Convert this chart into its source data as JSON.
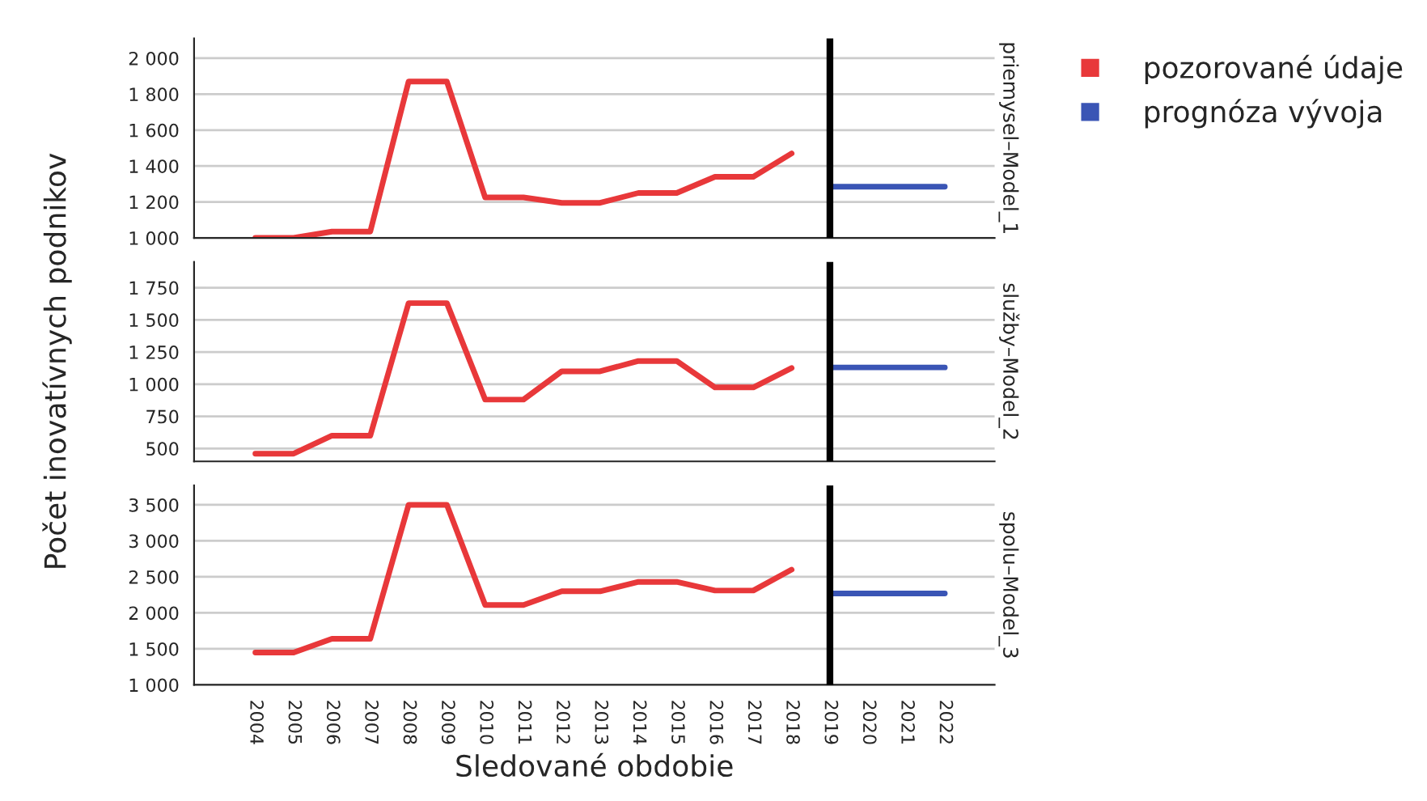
{
  "chart_data": [
    {
      "type": "line",
      "title": "priemysel–Model_1",
      "ylabel": "Počet inovatívnych podnikov",
      "xlim": [
        2002.4,
        2023.3
      ],
      "xticks": [
        2004,
        2005,
        2006,
        2007,
        2008,
        2009,
        2010,
        2011,
        2012,
        2013,
        2014,
        2015,
        2016,
        2017,
        2018,
        2019,
        2020,
        2021,
        2022
      ],
      "ylim": [
        1000,
        2110
      ],
      "yticks": [
        {
          "value": 1000,
          "label": "1 000"
        },
        {
          "value": 1200,
          "label": "1 200"
        },
        {
          "value": 1400,
          "label": "1 400"
        },
        {
          "value": 1600,
          "label": "1 600"
        },
        {
          "value": 1800,
          "label": "1 800"
        },
        {
          "value": 2000,
          "label": "2 000"
        }
      ],
      "grid": "y",
      "tick_labels": "y",
      "legend": "top right",
      "ref_lines": [
        {
          "axis": "x",
          "value": 2019,
          "color": "#000000"
        }
      ],
      "series": [
        {
          "name": "pozorované údaje",
          "color": "#e8383a",
          "x": [
            2004,
            2005,
            2006,
            2007,
            2008,
            2009,
            2010,
            2011,
            2012,
            2013,
            2014,
            2015,
            2016,
            2017,
            2018
          ],
          "values": [
            1000,
            1000,
            1035,
            1035,
            1870,
            1870,
            1225,
            1225,
            1195,
            1195,
            1250,
            1250,
            1340,
            1340,
            1470
          ]
        },
        {
          "name": "prognóza vývoja",
          "color": "#3a55b5",
          "x": [
            2019,
            2020,
            2021,
            2022
          ],
          "values": [
            1285,
            1285,
            1285,
            1285
          ]
        }
      ]
    },
    {
      "type": "line",
      "title": "služby–Model_2",
      "xlim": [
        2002.4,
        2023.3
      ],
      "xticks": [
        2004,
        2005,
        2006,
        2007,
        2008,
        2009,
        2010,
        2011,
        2012,
        2013,
        2014,
        2015,
        2016,
        2017,
        2018,
        2019,
        2020,
        2021,
        2022
      ],
      "ylim": [
        400,
        1950
      ],
      "yticks": [
        500,
        750,
        {
          "value": 1000,
          "label": "1 000"
        },
        {
          "value": 1250,
          "label": "1 250"
        },
        {
          "value": 1500,
          "label": "1 500"
        },
        {
          "value": 1750,
          "label": "1 750"
        }
      ],
      "grid": "y",
      "tick_labels": "y",
      "ref_lines": [
        {
          "axis": "x",
          "value": 2019,
          "color": "#000000"
        }
      ],
      "series": [
        {
          "color": "#e8383a",
          "x": [
            2004,
            2005,
            2006,
            2007,
            2008,
            2009,
            2010,
            2011,
            2012,
            2013,
            2014,
            2015,
            2016,
            2017,
            2018
          ],
          "values": [
            460,
            460,
            600,
            600,
            1630,
            1630,
            880,
            880,
            1100,
            1100,
            1180,
            1180,
            975,
            975,
            1125
          ]
        },
        {
          "color": "#3a55b5",
          "x": [
            2019,
            2020,
            2021,
            2022
          ],
          "values": [
            1130,
            1130,
            1130,
            1130
          ]
        }
      ]
    },
    {
      "type": "line",
      "title": "spolu–Model_3",
      "xlabel": "Sledované obdobie",
      "xlim": [
        2002.4,
        2023.3
      ],
      "xticks": [
        2004,
        2005,
        2006,
        2007,
        2008,
        2009,
        2010,
        2011,
        2012,
        2013,
        2014,
        2015,
        2016,
        2017,
        2018,
        2019,
        2020,
        2021,
        2022
      ],
      "ylim": [
        1000,
        3770
      ],
      "yticks": [
        {
          "value": 1000,
          "label": "1 000"
        },
        {
          "value": 1500,
          "label": "1 500"
        },
        {
          "value": 2000,
          "label": "2 000"
        },
        {
          "value": 2500,
          "label": "2 500"
        },
        {
          "value": 3000,
          "label": "3 000"
        },
        {
          "value": 3500,
          "label": "3 500"
        }
      ],
      "grid": "y",
      "ref_lines": [
        {
          "axis": "x",
          "value": 2019,
          "color": "#000000"
        }
      ],
      "series": [
        {
          "color": "#e8383a",
          "x": [
            2004,
            2005,
            2006,
            2007,
            2008,
            2009,
            2010,
            2011,
            2012,
            2013,
            2014,
            2015,
            2016,
            2017,
            2018
          ],
          "values": [
            1450,
            1450,
            1640,
            1640,
            3500,
            3500,
            2110,
            2110,
            2300,
            2300,
            2430,
            2430,
            2310,
            2310,
            2600
          ]
        },
        {
          "color": "#3a55b5",
          "x": [
            2019,
            2020,
            2021,
            2022
          ],
          "values": [
            2270,
            2270,
            2270,
            2270
          ]
        }
      ]
    }
  ]
}
